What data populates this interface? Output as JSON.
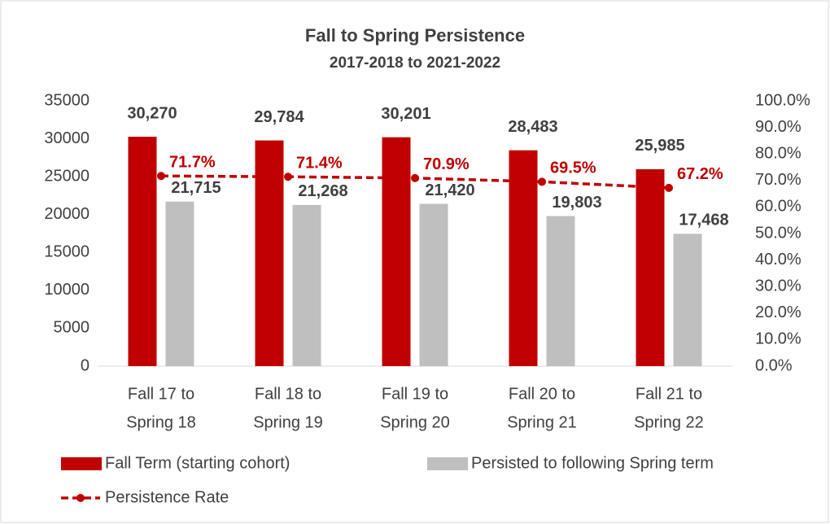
{
  "chart_data": {
    "type": "bar",
    "title": "Fall to Spring Persistence",
    "subtitle": "2017-2018 to 2021-2022",
    "categories": [
      [
        "Fall 17 to",
        "Spring 18"
      ],
      [
        "Fall 18 to",
        "Spring 19"
      ],
      [
        "Fall 19 to",
        "Spring 20"
      ],
      [
        "Fall 20 to",
        "Spring 21"
      ],
      [
        "Fall 21 to",
        "Spring 22"
      ]
    ],
    "series": [
      {
        "name": "Fall Term (starting cohort)",
        "type": "bar",
        "color": "#c00000",
        "values": [
          30270,
          29784,
          30201,
          28483,
          25985
        ],
        "value_labels": [
          "30,270",
          "29,784",
          "30,201",
          "28,483",
          "25,985"
        ]
      },
      {
        "name": "Persisted to following Spring term",
        "type": "bar",
        "color": "#bfbfbf",
        "values": [
          21715,
          21268,
          21420,
          19803,
          17468
        ],
        "value_labels": [
          "21,715",
          "21,268",
          "21,420",
          "19,803",
          "17,468"
        ]
      },
      {
        "name": "Persistence Rate",
        "type": "line",
        "axis": "y2",
        "color": "#c00000",
        "values": [
          71.7,
          71.4,
          70.9,
          69.5,
          67.2
        ],
        "value_labels": [
          "71.7%",
          "71.4%",
          "70.9%",
          "69.5%",
          "67.2%"
        ]
      }
    ],
    "ylim": [
      0,
      35000
    ],
    "yticks": [
      0,
      5000,
      10000,
      15000,
      20000,
      25000,
      30000,
      35000
    ],
    "y2lim": [
      0,
      100
    ],
    "y2ticks": [
      {
        "value": 0,
        "label": "0.0%"
      },
      {
        "value": 10,
        "label": "10.0%"
      },
      {
        "value": 20,
        "label": "20.0%"
      },
      {
        "value": 30,
        "label": "30.0%"
      },
      {
        "value": 40,
        "label": "40.0%"
      },
      {
        "value": 50,
        "label": "50.0%"
      },
      {
        "value": 60,
        "label": "60.0%"
      },
      {
        "value": 70,
        "label": "70.0%"
      },
      {
        "value": 80,
        "label": "80.0%"
      },
      {
        "value": 90,
        "label": "90.0%"
      },
      {
        "value": 100,
        "label": "100.0%"
      }
    ],
    "grid": false
  }
}
